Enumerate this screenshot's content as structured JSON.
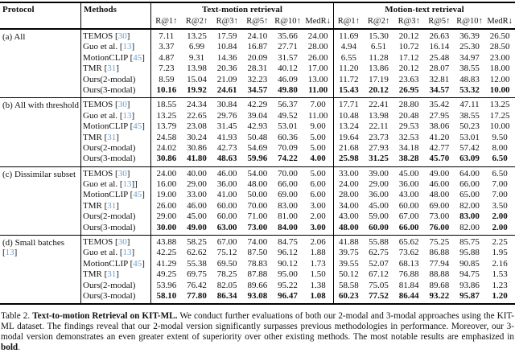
{
  "colors": {
    "citation": "#6f9fcc",
    "text": "#111111",
    "rule": "#000000"
  },
  "header": {
    "protocol": "Protocol",
    "methods": "Methods",
    "text_motion": "Text-motion retrieval",
    "motion_text": "Motion-text retrieval",
    "metrics": [
      "R@1↑",
      "R@2↑",
      "R@3↑",
      "R@5↑",
      "R@10↑",
      "MedR↓"
    ]
  },
  "sections": [
    {
      "protocol": {
        "label": "(a) All",
        "cite": null
      },
      "rows": [
        {
          "method": "TEMOS",
          "cite": "30",
          "vals": [
            "7.11",
            "13.25",
            "17.59",
            "24.10",
            "35.66",
            "24.00",
            "11.69",
            "15.30",
            "20.12",
            "26.63",
            "36.39",
            "26.50"
          ]
        },
        {
          "method": "Guo et al.",
          "cite": "13",
          "vals": [
            "3.37",
            "6.99",
            "10.84",
            "16.87",
            "27.71",
            "28.00",
            "4.94",
            "6.51",
            "10.72",
            "16.14",
            "25.30",
            "28.50"
          ]
        },
        {
          "method": "MotionCLIP",
          "cite": "45",
          "vals": [
            "4.87",
            "9.31",
            "14.36",
            "20.09",
            "31.57",
            "26.00",
            "6.55",
            "11.28",
            "17.12",
            "25.48",
            "34.97",
            "23.00"
          ]
        },
        {
          "method": "TMR",
          "cite": "31",
          "vals": [
            "7.23",
            "13.98",
            "20.36",
            "28.31",
            "40.12",
            "17.00",
            "11.20",
            "13.86",
            "20.12",
            "28.07",
            "38.55",
            "18.00"
          ]
        },
        {
          "method": "Ours(2-modal)",
          "cite": null,
          "vals": [
            "8.59",
            "15.04",
            "21.09",
            "32.23",
            "46.09",
            "13.00",
            "11.72",
            "17.19",
            "23.63",
            "32.81",
            "48.83",
            "12.00"
          ]
        },
        {
          "method": "Ours(3-modal)",
          "cite": null,
          "vals": [
            "10.16",
            "19.92",
            "24.61",
            "34.57",
            "49.80",
            "11.00",
            "15.43",
            "20.12",
            "26.95",
            "34.57",
            "53.32",
            "10.00"
          ],
          "bold": [
            1,
            1,
            1,
            1,
            1,
            1,
            1,
            1,
            1,
            1,
            1,
            1
          ]
        }
      ]
    },
    {
      "protocol": {
        "label": "(b) All with threshold",
        "cite": null
      },
      "rows": [
        {
          "method": "TEMOS",
          "cite": "30",
          "vals": [
            "18.55",
            "24.34",
            "30.84",
            "42.29",
            "56.37",
            "7.00",
            "17.71",
            "22.41",
            "28.80",
            "35.42",
            "47.11",
            "13.25"
          ]
        },
        {
          "method": "Guo et al.",
          "cite": "13",
          "vals": [
            "13.25",
            "22.65",
            "29.76",
            "39.04",
            "49.52",
            "11.00",
            "10.48",
            "13.98",
            "20.48",
            "27.95",
            "38.55",
            "17.25"
          ]
        },
        {
          "method": "MotionCLIP",
          "cite": "45",
          "vals": [
            "13.79",
            "23.08",
            "31.45",
            "42.93",
            "53.01",
            "9.00",
            "13.24",
            "22.11",
            "29.53",
            "38.06",
            "50.23",
            "10.00"
          ]
        },
        {
          "method": "TMR",
          "cite": "31",
          "vals": [
            "24.58",
            "30.24",
            "41.93",
            "50.48",
            "60.36",
            "5.00",
            "19.64",
            "23.73",
            "32.53",
            "41.20",
            "53.01",
            "9.50"
          ]
        },
        {
          "method": "Ours(2-modal)",
          "cite": null,
          "vals": [
            "24.02",
            "30.86",
            "42.73",
            "54.69",
            "70.09",
            "5.00",
            "21.68",
            "27.93",
            "34.18",
            "42.77",
            "57.42",
            "8.00"
          ]
        },
        {
          "method": "Ours(3-modal)",
          "cite": null,
          "vals": [
            "30.86",
            "41.80",
            "48.63",
            "59.96",
            "74.22",
            "4.00",
            "25.98",
            "31.25",
            "38.28",
            "45.70",
            "63.09",
            "6.50"
          ],
          "bold": [
            1,
            1,
            1,
            1,
            1,
            1,
            1,
            1,
            1,
            1,
            1,
            1
          ]
        }
      ]
    },
    {
      "protocol": {
        "label": "(c) Dissimilar subset",
        "cite": null
      },
      "rows": [
        {
          "method": "TEMOS",
          "cite": "30",
          "vals": [
            "24.00",
            "40.00",
            "46.00",
            "54.00",
            "70.00",
            "5.00",
            "33.00",
            "39.00",
            "45.00",
            "49.00",
            "64.00",
            "6.50"
          ]
        },
        {
          "method": "Guo et al.",
          "cite": "13",
          "cite_post": "]",
          "vals": [
            "16.00",
            "29.00",
            "36.00",
            "48.00",
            "66.00",
            "6.00",
            "24.00",
            "29.00",
            "36.00",
            "46.00",
            "66.00",
            "7.00"
          ]
        },
        {
          "method": "MotionCLIP",
          "cite": "45",
          "vals": [
            "19.00",
            "33.00",
            "41.00",
            "50.00",
            "69.00",
            "6.00",
            "28.00",
            "36.00",
            "43.00",
            "48.00",
            "65.00",
            "7.00"
          ]
        },
        {
          "method": "TMR",
          "cite": "31",
          "vals": [
            "26.00",
            "46.00",
            "60.00",
            "70.00",
            "83.00",
            "3.00",
            "34.00",
            "45.00",
            "60.00",
            "69.00",
            "82.00",
            "3.50"
          ]
        },
        {
          "method": "Ours(2-modal)",
          "cite": null,
          "vals": [
            "29.00",
            "45.00",
            "60.00",
            "71.00",
            "81.00",
            "2.00",
            "43.00",
            "59.00",
            "67.00",
            "73.00",
            "83.00",
            "2.00"
          ],
          "bold": [
            0,
            0,
            0,
            0,
            0,
            0,
            0,
            0,
            0,
            0,
            1,
            1
          ]
        },
        {
          "method": "Ours(3-modal)",
          "cite": null,
          "vals": [
            "30.00",
            "49.00",
            "63.00",
            "73.00",
            "84.00",
            "3.00",
            "48.00",
            "60.00",
            "66.00",
            "76.00",
            "82.00",
            "2.00"
          ],
          "bold": [
            1,
            1,
            1,
            1,
            1,
            1,
            1,
            1,
            1,
            1,
            0,
            1
          ]
        }
      ]
    },
    {
      "protocol": {
        "label": "(d) Small batches",
        "cite": "13"
      },
      "rows": [
        {
          "method": "TEMOS",
          "cite": "30",
          "vals": [
            "43.88",
            "58.25",
            "67.00",
            "74.00",
            "84.75",
            "2.06",
            "41.88",
            "55.88",
            "65.62",
            "75.25",
            "85.75",
            "2.25"
          ]
        },
        {
          "method": "Guo et al.",
          "cite": "13",
          "vals": [
            "42.25",
            "62.62",
            "75.12",
            "87.50",
            "96.12",
            "1.88",
            "39.75",
            "62.75",
            "73.62",
            "86.88",
            "95.88",
            "1.95"
          ]
        },
        {
          "method": "MotionCLIP",
          "cite": "45",
          "vals": [
            "41.29",
            "55.38",
            "69.50",
            "78.83",
            "90.12",
            "1.73",
            "39.55",
            "52.07",
            "68.13",
            "77.94",
            "90.85",
            "2.16"
          ]
        },
        {
          "method": "TMR",
          "cite": "31",
          "vals": [
            "49.25",
            "69.75",
            "78.25",
            "87.88",
            "95.00",
            "1.50",
            "50.12",
            "67.12",
            "76.88",
            "88.88",
            "94.75",
            "1.53"
          ]
        },
        {
          "method": "Ours(2-modal)",
          "cite": null,
          "vals": [
            "53.96",
            "76.42",
            "82.05",
            "89.66",
            "95.22",
            "1.38",
            "58.58",
            "75.05",
            "81.84",
            "89.68",
            "93.86",
            "1.23"
          ]
        },
        {
          "method": "Ours(3-modal)",
          "cite": null,
          "vals": [
            "58.10",
            "77.80",
            "86.34",
            "93.08",
            "96.47",
            "1.08",
            "60.23",
            "77.52",
            "86.44",
            "93.22",
            "95.87",
            "1.20"
          ],
          "bold": [
            1,
            1,
            1,
            1,
            1,
            1,
            1,
            1,
            1,
            1,
            1,
            1
          ]
        }
      ]
    }
  ],
  "caption": {
    "label": "Table 2.",
    "title": "Text-to-motion Retrieval on KIT-ML.",
    "body": "We conduct further evaluations of both our 2-modal and 3-modal approaches using the KIT-ML dataset. The findings reveal that our 2-modal version significantly surpasses previous methodologies in performance. Moreover, our 3-modal version demonstrates an even greater extent of superiority over other existing methods. The most notable results are emphasized in",
    "bold_word": "bold",
    "end": "."
  }
}
